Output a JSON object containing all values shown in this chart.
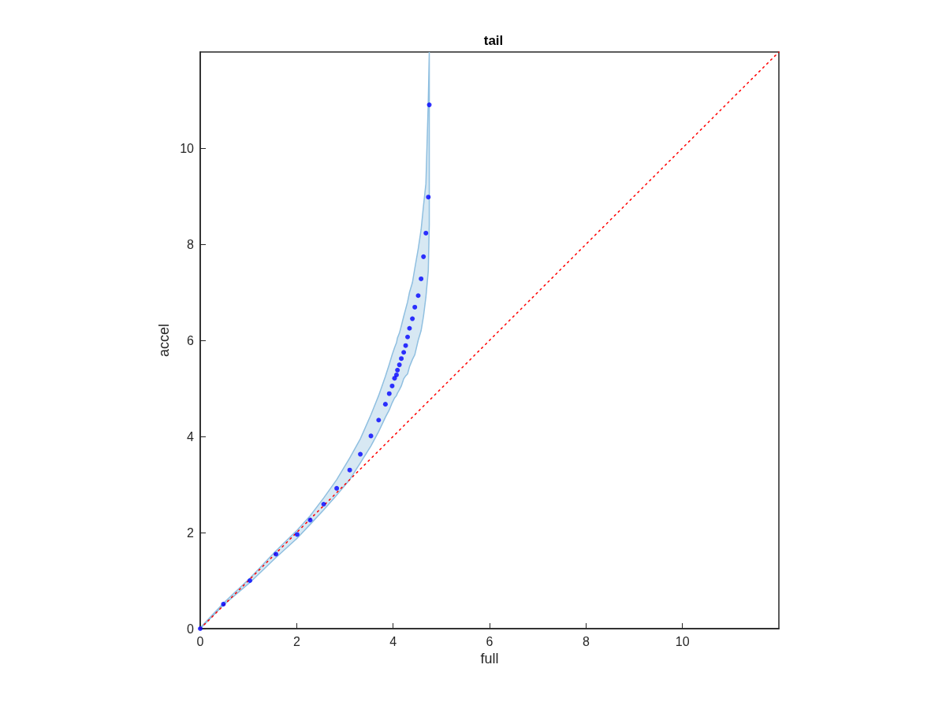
{
  "chart_data": {
    "type": "scatter",
    "title": "tail",
    "xlabel": "full",
    "ylabel": "accel",
    "xlim": [
      0,
      12
    ],
    "ylim": [
      0,
      12
    ],
    "xticks": [
      0,
      2,
      4,
      6,
      8,
      10
    ],
    "yticks": [
      0,
      2,
      4,
      6,
      8,
      10
    ],
    "grid": false,
    "marker": "circle",
    "series": [
      {
        "color": "#0000ff",
        "x": [
          0,
          0.48,
          1.03,
          1.57,
          2.01,
          2.28,
          2.56,
          2.83,
          3.1,
          3.32,
          3.54,
          3.7,
          3.84,
          3.92,
          3.98,
          4.03,
          4.07,
          4.09,
          4.13,
          4.17,
          4.22,
          4.26,
          4.3,
          4.34,
          4.4,
          4.45,
          4.52,
          4.58,
          4.63,
          4.68,
          4.73,
          4.75
        ],
        "values": [
          0,
          0.51,
          1.0,
          1.55,
          1.96,
          2.26,
          2.59,
          2.92,
          3.3,
          3.63,
          4.01,
          4.34,
          4.67,
          4.89,
          5.05,
          5.21,
          5.28,
          5.38,
          5.49,
          5.62,
          5.75,
          5.89,
          6.07,
          6.25,
          6.45,
          6.69,
          6.93,
          7.28,
          7.74,
          8.23,
          8.98,
          10.9
        ],
        "lower": [
          0,
          0.49,
          0.96,
          1.48,
          1.88,
          2.17,
          2.47,
          2.78,
          3.1,
          3.45,
          3.8,
          4.1,
          4.4,
          4.55,
          4.7,
          4.8,
          4.85,
          4.9,
          4.97,
          5.05,
          5.2,
          5.26,
          5.3,
          5.45,
          5.6,
          5.7,
          6.0,
          6.2,
          6.5,
          6.9,
          7.45,
          8.4
        ],
        "upper": [
          0.02,
          0.53,
          1.05,
          1.62,
          2.05,
          2.35,
          2.72,
          3.1,
          3.55,
          3.95,
          4.45,
          4.85,
          5.25,
          5.5,
          5.7,
          5.85,
          5.95,
          6.05,
          6.15,
          6.3,
          6.5,
          6.65,
          6.8,
          7.0,
          7.2,
          7.5,
          7.9,
          8.3,
          8.8,
          9.26,
          11,
          12
        ]
      },
      {
        "type": "line",
        "color": "#ff0000",
        "line_style": "dotted",
        "marker": "none",
        "x": [
          0,
          12
        ],
        "values": [
          0,
          12
        ]
      }
    ]
  }
}
